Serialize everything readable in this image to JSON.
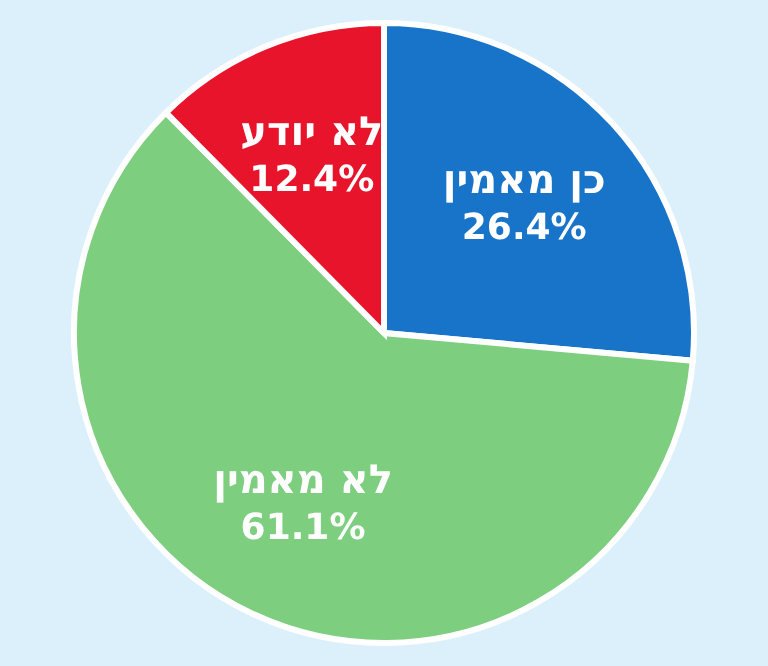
{
  "chart_data": {
    "type": "pie",
    "categories": [
      "כן מאמין",
      "לא מאמין",
      "לא יודע"
    ],
    "values": [
      26.4,
      61.1,
      12.4
    ],
    "value_labels": [
      "26.4%",
      "61.1%",
      "12.4%"
    ],
    "colors": [
      "#1874c8",
      "#7dce7f",
      "#e8142c"
    ],
    "legend": false
  }
}
